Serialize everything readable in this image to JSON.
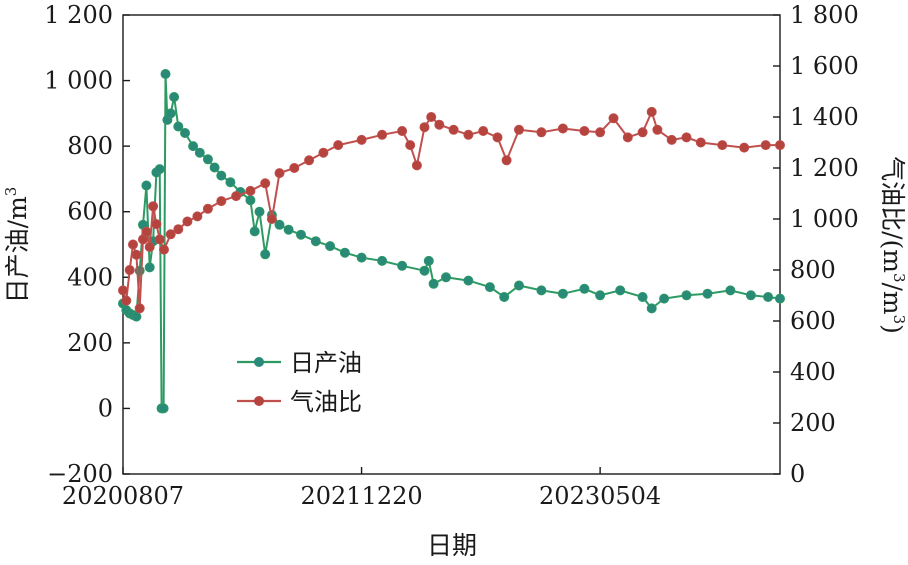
{
  "chart_data": {
    "type": "line",
    "xlabel": "日期",
    "ylabel_left": "日产油/m",
    "ylabel_left_sup": "3",
    "ylabel_right_parts": [
      "气油比/(m",
      "3",
      "/m",
      "3",
      ")"
    ],
    "x_ticks": [
      "20200807",
      "20211220",
      "20230504"
    ],
    "x_range": [
      "2020-08-07",
      "2024-05-15"
    ],
    "yleft_range": [
      -200,
      1200
    ],
    "yleft_ticks": [
      "−200",
      "0",
      "200",
      "400",
      "600",
      "800",
      "1 000",
      "1 200"
    ],
    "yright_range": [
      0,
      1800
    ],
    "yright_ticks": [
      "0",
      "200",
      "400",
      "600",
      "800",
      "1 000",
      "1 200",
      "1 400",
      "1 600",
      "1 800"
    ],
    "grid": false,
    "legend_position": "center-left",
    "series": [
      {
        "name": "日产油",
        "axis": "left",
        "color": "#2e9a63",
        "marker": "#2a8a78",
        "points": [
          [
            "2020-08-07",
            320
          ],
          [
            "2020-08-14",
            300
          ],
          [
            "2020-08-21",
            290
          ],
          [
            "2020-08-28",
            285
          ],
          [
            "2020-09-04",
            280
          ],
          [
            "2020-09-11",
            420
          ],
          [
            "2020-09-18",
            560
          ],
          [
            "2020-09-25",
            680
          ],
          [
            "2020-10-02",
            430
          ],
          [
            "2020-10-09",
            510
          ],
          [
            "2020-10-16",
            720
          ],
          [
            "2020-10-23",
            730
          ],
          [
            "2020-10-27",
            0
          ],
          [
            "2020-10-31",
            0
          ],
          [
            "2020-11-04",
            1020
          ],
          [
            "2020-11-08",
            880
          ],
          [
            "2020-11-15",
            900
          ],
          [
            "2020-11-22",
            950
          ],
          [
            "2020-12-01",
            860
          ],
          [
            "2020-12-15",
            840
          ],
          [
            "2021-01-01",
            800
          ],
          [
            "2021-01-15",
            780
          ],
          [
            "2021-02-01",
            760
          ],
          [
            "2021-02-15",
            735
          ],
          [
            "2021-03-01",
            710
          ],
          [
            "2021-03-20",
            690
          ],
          [
            "2021-04-10",
            660
          ],
          [
            "2021-05-01",
            635
          ],
          [
            "2021-05-10",
            540
          ],
          [
            "2021-05-20",
            600
          ],
          [
            "2021-06-01",
            470
          ],
          [
            "2021-06-15",
            590
          ],
          [
            "2021-07-01",
            560
          ],
          [
            "2021-07-20",
            545
          ],
          [
            "2021-08-15",
            530
          ],
          [
            "2021-09-15",
            510
          ],
          [
            "2021-10-15",
            495
          ],
          [
            "2021-11-15",
            475
          ],
          [
            "2021-12-20",
            460
          ],
          [
            "2022-02-01",
            450
          ],
          [
            "2022-03-15",
            435
          ],
          [
            "2022-05-01",
            420
          ],
          [
            "2022-05-10",
            450
          ],
          [
            "2022-05-20",
            380
          ],
          [
            "2022-06-15",
            400
          ],
          [
            "2022-08-01",
            390
          ],
          [
            "2022-09-15",
            370
          ],
          [
            "2022-10-15",
            340
          ],
          [
            "2022-11-15",
            375
          ],
          [
            "2023-01-01",
            360
          ],
          [
            "2023-02-15",
            350
          ],
          [
            "2023-04-01",
            365
          ],
          [
            "2023-05-04",
            345
          ],
          [
            "2023-06-15",
            360
          ],
          [
            "2023-08-01",
            340
          ],
          [
            "2023-08-20",
            305
          ],
          [
            "2023-09-15",
            335
          ],
          [
            "2023-11-01",
            345
          ],
          [
            "2023-12-15",
            350
          ],
          [
            "2024-02-01",
            360
          ],
          [
            "2024-03-15",
            345
          ],
          [
            "2024-04-20",
            340
          ],
          [
            "2024-05-15",
            335
          ]
        ]
      },
      {
        "name": "气油比",
        "axis": "right",
        "color": "#c0504d",
        "marker": "#b5443f",
        "points": [
          [
            "2020-08-07",
            720
          ],
          [
            "2020-08-14",
            680
          ],
          [
            "2020-08-21",
            800
          ],
          [
            "2020-08-28",
            900
          ],
          [
            "2020-09-04",
            860
          ],
          [
            "2020-09-11",
            650
          ],
          [
            "2020-09-18",
            920
          ],
          [
            "2020-09-25",
            950
          ],
          [
            "2020-10-02",
            890
          ],
          [
            "2020-10-09",
            1050
          ],
          [
            "2020-10-16",
            980
          ],
          [
            "2020-10-23",
            920
          ],
          [
            "2020-11-01",
            880
          ],
          [
            "2020-11-15",
            940
          ],
          [
            "2020-12-01",
            960
          ],
          [
            "2020-12-20",
            990
          ],
          [
            "2021-01-10",
            1010
          ],
          [
            "2021-02-01",
            1040
          ],
          [
            "2021-03-01",
            1070
          ],
          [
            "2021-04-01",
            1090
          ],
          [
            "2021-05-01",
            1110
          ],
          [
            "2021-06-01",
            1140
          ],
          [
            "2021-06-15",
            1000
          ],
          [
            "2021-07-01",
            1180
          ],
          [
            "2021-08-01",
            1200
          ],
          [
            "2021-09-01",
            1230
          ],
          [
            "2021-10-01",
            1260
          ],
          [
            "2021-11-01",
            1290
          ],
          [
            "2021-12-20",
            1310
          ],
          [
            "2022-02-01",
            1330
          ],
          [
            "2022-03-15",
            1345
          ],
          [
            "2022-04-01",
            1290
          ],
          [
            "2022-04-15",
            1210
          ],
          [
            "2022-05-01",
            1360
          ],
          [
            "2022-05-15",
            1400
          ],
          [
            "2022-06-01",
            1370
          ],
          [
            "2022-07-01",
            1350
          ],
          [
            "2022-08-01",
            1330
          ],
          [
            "2022-09-01",
            1345
          ],
          [
            "2022-10-01",
            1320
          ],
          [
            "2022-10-20",
            1230
          ],
          [
            "2022-11-15",
            1350
          ],
          [
            "2023-01-01",
            1340
          ],
          [
            "2023-02-15",
            1355
          ],
          [
            "2023-04-01",
            1345
          ],
          [
            "2023-05-04",
            1340
          ],
          [
            "2023-06-01",
            1395
          ],
          [
            "2023-07-01",
            1320
          ],
          [
            "2023-08-01",
            1340
          ],
          [
            "2023-08-20",
            1420
          ],
          [
            "2023-09-01",
            1350
          ],
          [
            "2023-10-01",
            1310
          ],
          [
            "2023-11-01",
            1320
          ],
          [
            "2023-12-01",
            1300
          ],
          [
            "2024-01-15",
            1290
          ],
          [
            "2024-03-01",
            1280
          ],
          [
            "2024-04-15",
            1290
          ],
          [
            "2024-05-15",
            1290
          ]
        ]
      }
    ]
  }
}
